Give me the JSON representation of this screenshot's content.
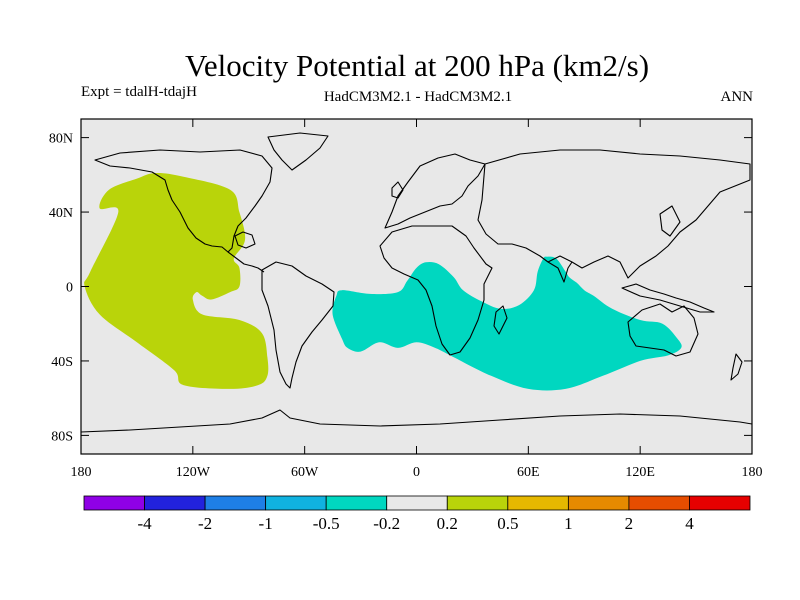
{
  "chart_data": {
    "type": "heatmap",
    "title": "Velocity Potential at 200 hPa (km2/s)",
    "subtitle_left": "Expt = tdalH-tdajH",
    "subtitle_center": "HadCM3M2.1 - HadCM3M2.1",
    "subtitle_right": "ANN",
    "map_background": "#e8e8e8",
    "x_ticks": [
      {
        "value": -180,
        "label": "180"
      },
      {
        "value": -120,
        "label": "120W"
      },
      {
        "value": -60,
        "label": "60W"
      },
      {
        "value": 0,
        "label": "0"
      },
      {
        "value": 60,
        "label": "60E"
      },
      {
        "value": 120,
        "label": "120E"
      },
      {
        "value": 180,
        "label": "180"
      }
    ],
    "y_ticks": [
      {
        "value": 80,
        "label": "80N"
      },
      {
        "value": 40,
        "label": "40N"
      },
      {
        "value": 0,
        "label": "0"
      },
      {
        "value": -40,
        "label": "40S"
      },
      {
        "value": -80,
        "label": "80S"
      }
    ],
    "xlim": [
      -180,
      180
    ],
    "ylim": [
      -90,
      90
    ],
    "regions": [
      {
        "name": "positive-anomaly-pacific",
        "level_range": "0.2 to 0.5",
        "color": "#b9d40a",
        "outline_lonlat": [
          [
            -150,
            58
          ],
          [
            -140,
            61
          ],
          [
            -125,
            59
          ],
          [
            -100,
            52
          ],
          [
            -95,
            40
          ],
          [
            -92,
            25
          ],
          [
            -98,
            15
          ],
          [
            -95,
            10
          ],
          [
            -95,
            0
          ],
          [
            -100,
            -3
          ],
          [
            -110,
            -7
          ],
          [
            -115,
            -5
          ],
          [
            -118,
            -3
          ],
          [
            -120,
            -7
          ],
          [
            -115,
            -15
          ],
          [
            -95,
            -18
          ],
          [
            -83,
            -25
          ],
          [
            -80,
            -38
          ],
          [
            -80,
            -48
          ],
          [
            -85,
            -53
          ],
          [
            -100,
            -55
          ],
          [
            -125,
            -53
          ],
          [
            -130,
            -45
          ],
          [
            -150,
            -30
          ],
          [
            -170,
            -15
          ],
          [
            -178,
            0
          ],
          [
            -175,
            8
          ],
          [
            -160,
            40
          ],
          [
            -170,
            42
          ],
          [
            -165,
            52
          ]
        ]
      },
      {
        "name": "negative-anomaly-atlantic-indian",
        "level_range": "-0.5 to -0.2",
        "color": "#00d7c0",
        "outline_lonlat": [
          [
            -40,
            -2
          ],
          [
            -25,
            -4
          ],
          [
            -10,
            -3
          ],
          [
            -5,
            3
          ],
          [
            0,
            10
          ],
          [
            5,
            13
          ],
          [
            12,
            12
          ],
          [
            20,
            5
          ],
          [
            25,
            -2
          ],
          [
            35,
            -8
          ],
          [
            45,
            -12
          ],
          [
            55,
            -10
          ],
          [
            63,
            -2
          ],
          [
            65,
            8
          ],
          [
            68,
            15
          ],
          [
            70,
            16
          ],
          [
            75,
            15
          ],
          [
            80,
            8
          ],
          [
            82,
            5
          ],
          [
            86,
            2
          ],
          [
            90,
            -2
          ],
          [
            95,
            -5
          ],
          [
            105,
            -12
          ],
          [
            120,
            -18
          ],
          [
            132,
            -20
          ],
          [
            140,
            -28
          ],
          [
            142,
            -33
          ],
          [
            135,
            -37
          ],
          [
            120,
            -40
          ],
          [
            100,
            -48
          ],
          [
            80,
            -55
          ],
          [
            60,
            -55
          ],
          [
            40,
            -48
          ],
          [
            20,
            -38
          ],
          [
            10,
            -33
          ],
          [
            0,
            -30
          ],
          [
            -10,
            -33
          ],
          [
            -20,
            -30
          ],
          [
            -30,
            -35
          ],
          [
            -37,
            -33
          ],
          [
            -40,
            -28
          ],
          [
            -45,
            -15
          ],
          [
            -43,
            -5
          ]
        ]
      }
    ],
    "colorbar": {
      "colors": [
        "#8f00e6",
        "#2222dd",
        "#1e7fe6",
        "#10b2e0",
        "#00d7c0",
        "#e8e8e8",
        "#b9d40a",
        "#e6b800",
        "#e68a00",
        "#e64d00",
        "#e60000"
      ],
      "labels": [
        "-4",
        "-2",
        "-1",
        "-0.5",
        "-0.2",
        "0.2",
        "0.5",
        "1",
        "2",
        "4"
      ]
    }
  }
}
